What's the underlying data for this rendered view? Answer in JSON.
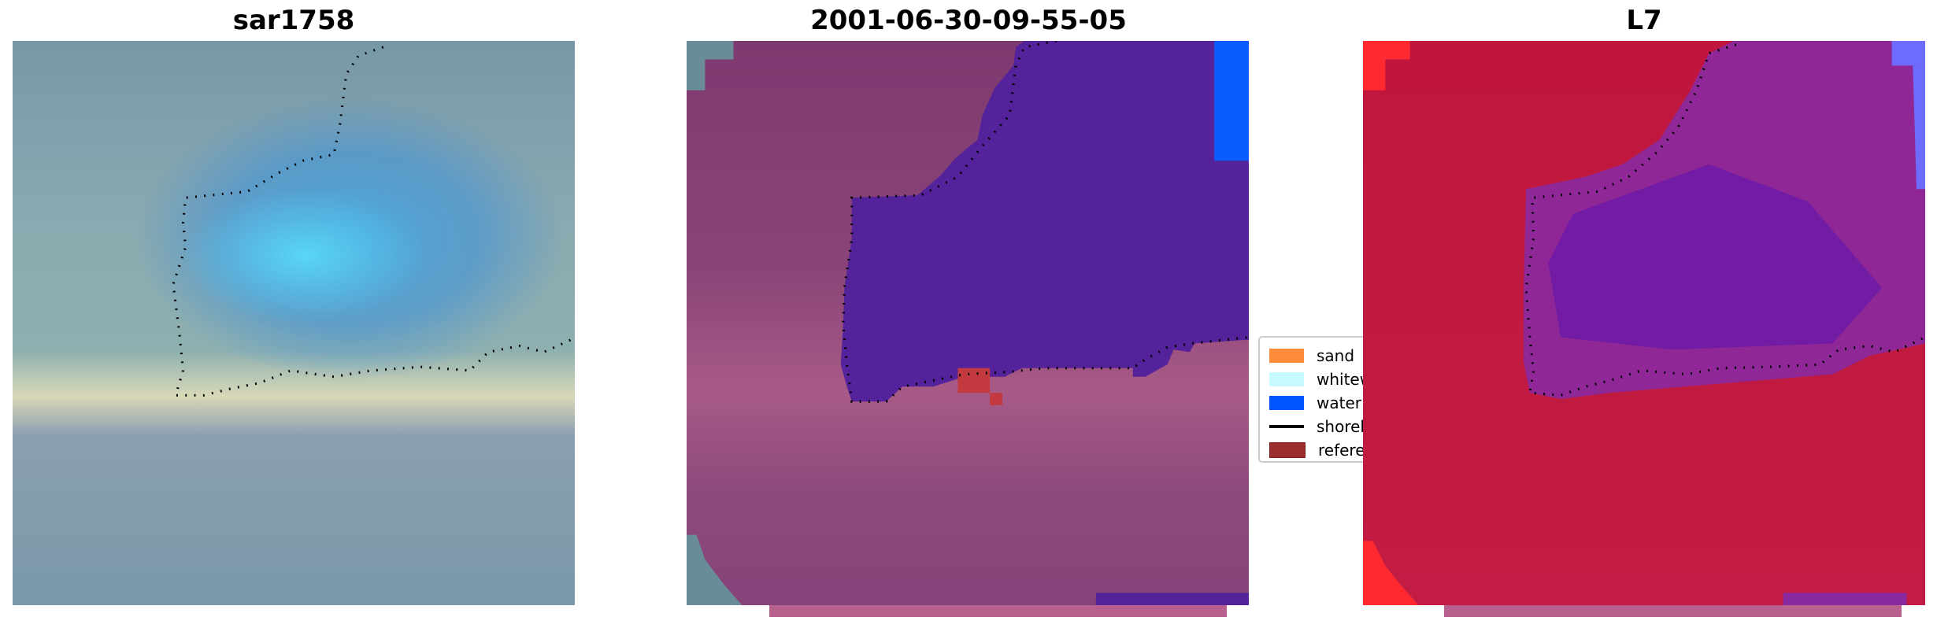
{
  "panels": [
    {
      "title": "sar1758"
    },
    {
      "title": "2001-06-30-09-55-05"
    },
    {
      "title": "L7"
    }
  ],
  "legend": {
    "items": [
      {
        "label": "sand",
        "color": "#ff8c3a",
        "kind": "patch"
      },
      {
        "label": "whitewater",
        "color": "#c8fbff",
        "kind": "patch"
      },
      {
        "label": "water",
        "color": "#0055ff",
        "kind": "patch"
      },
      {
        "label": "shoreline",
        "color": "#000000",
        "kind": "line"
      },
      {
        "label": "reference",
        "color": "#9a2e2e",
        "kind": "patch"
      }
    ]
  },
  "colors": {
    "water_class": "#54229a",
    "water_rgb_top_right": "#0a5cff",
    "reference_pixels": "#c23a40"
  }
}
